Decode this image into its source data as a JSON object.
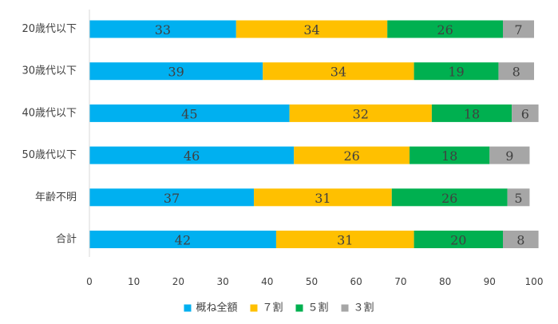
{
  "chart_data": {
    "type": "bar",
    "orientation": "horizontal",
    "stacked": true,
    "categories": [
      "20歳代以下",
      "30歳代以下",
      "40歳代以下",
      "50歳代以下",
      "年齢不明",
      "合計"
    ],
    "series": [
      {
        "name": "概ね全額",
        "color": "#00b0f0",
        "values": [
          33,
          39,
          45,
          46,
          37,
          42
        ]
      },
      {
        "name": "７割",
        "color": "#ffc000",
        "values": [
          34,
          34,
          32,
          26,
          31,
          31
        ]
      },
      {
        "name": "５割",
        "color": "#00b050",
        "values": [
          26,
          19,
          18,
          18,
          26,
          20
        ]
      },
      {
        "name": "３割",
        "color": "#a6a6a6",
        "values": [
          7,
          8,
          6,
          9,
          5,
          8
        ]
      }
    ],
    "xlim": [
      0,
      100
    ],
    "xticks": [
      0,
      10,
      20,
      30,
      40,
      50,
      60,
      70,
      80,
      90,
      100
    ],
    "grid": false,
    "legend_position": "bottom",
    "title": "",
    "xlabel": "",
    "ylabel": ""
  }
}
